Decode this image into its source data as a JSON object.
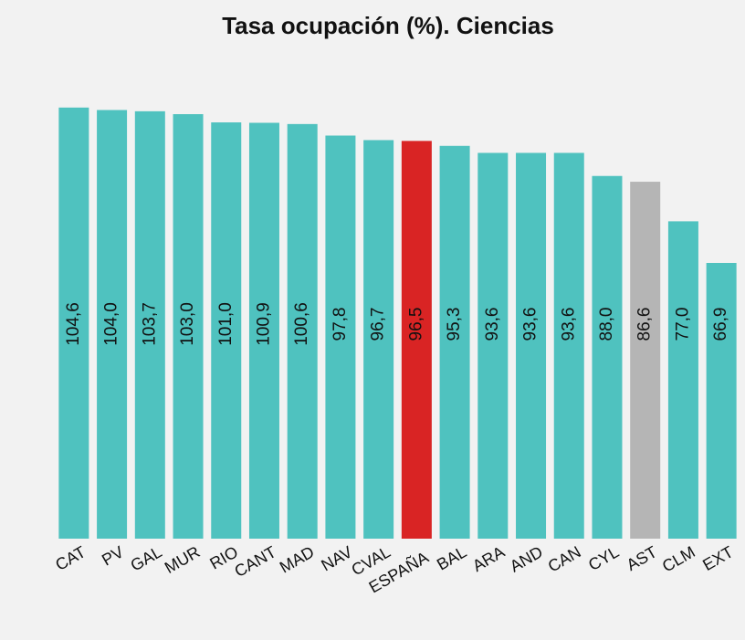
{
  "chart_data": {
    "type": "bar",
    "title": "Tasa ocupación (%). Ciencias",
    "categories": [
      "CAT",
      "PV",
      "GAL",
      "MUR",
      "RIO",
      "CANT",
      "MAD",
      "NAV",
      "CVAL",
      "ESPAÑA",
      "BAL",
      "ARA",
      "AND",
      "CAN",
      "CYL",
      "AST",
      "CLM",
      "EXT"
    ],
    "values": [
      104.6,
      104.0,
      103.7,
      103.0,
      101.0,
      100.9,
      100.6,
      97.8,
      96.7,
      96.5,
      95.3,
      93.6,
      93.6,
      93.6,
      88.0,
      86.6,
      77.0,
      66.9
    ],
    "value_labels": [
      "104,6",
      "104,0",
      "103,7",
      "103,0",
      "101,0",
      "100,9",
      "100,6",
      "97,8",
      "96,7",
      "96,5",
      "95,3",
      "93,6",
      "93,6",
      "93,6",
      "88,0",
      "86,6",
      "77,0",
      "66,9"
    ],
    "colors": [
      "#4fc2bf",
      "#4fc2bf",
      "#4fc2bf",
      "#4fc2bf",
      "#4fc2bf",
      "#4fc2bf",
      "#4fc2bf",
      "#4fc2bf",
      "#4fc2bf",
      "#d92424",
      "#4fc2bf",
      "#4fc2bf",
      "#4fc2bf",
      "#4fc2bf",
      "#4fc2bf",
      "#b5b5b5",
      "#4fc2bf",
      "#4fc2bf"
    ],
    "ylim": [
      0,
      105
    ]
  }
}
